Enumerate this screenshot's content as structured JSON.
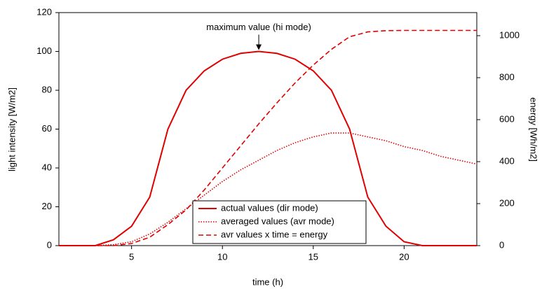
{
  "chart_data": {
    "type": "line",
    "x": [
      1,
      2,
      3,
      4,
      5,
      6,
      7,
      8,
      9,
      10,
      11,
      12,
      13,
      14,
      15,
      16,
      17,
      18,
      19,
      20,
      21,
      22,
      23,
      24
    ],
    "xlim": [
      1,
      24
    ],
    "xticks": [
      5,
      10,
      15,
      20
    ],
    "ylim": [
      0,
      120
    ],
    "yticks": [
      0,
      20,
      40,
      60,
      80,
      100,
      120
    ],
    "y2lim": [
      0,
      1110
    ],
    "y2ticks": [
      0,
      200,
      400,
      600,
      800,
      1000
    ],
    "xlabel": "time (h)",
    "ylabel": "light intensity [W/m2]",
    "y2label": "energy [Wh/m2]",
    "legend": "lower-left",
    "annotations": [
      {
        "text": "maximum value (hi mode)",
        "x": 12,
        "y": 100
      }
    ],
    "series": [
      {
        "name": "actual values (dir mode)",
        "color": "#e00000",
        "style": "solid",
        "values": [
          0,
          0,
          0,
          3,
          10,
          25,
          60,
          80,
          90,
          96,
          99,
          100,
          99,
          96,
          90,
          80,
          60,
          25,
          10,
          2,
          0,
          0,
          0,
          0
        ]
      },
      {
        "name": "averaged values (avr mode)",
        "color": "#e00000",
        "style": "dotted",
        "values": [
          0,
          0,
          0,
          0.5,
          2,
          6,
          12,
          19,
          26,
          33,
          39,
          44,
          49,
          53,
          56,
          58,
          58,
          56,
          54,
          51,
          49,
          46,
          44,
          42
        ]
      },
      {
        "name": "avr values x time = energy",
        "color": "#e00000",
        "style": "dashed",
        "axis": "y2",
        "values": [
          0,
          0,
          0,
          0,
          10,
          40,
          100,
          170,
          265,
          370,
          475,
          580,
          680,
          775,
          860,
          935,
          995,
          1018,
          1024,
          1025,
          1025,
          1025,
          1025,
          1025
        ]
      }
    ]
  }
}
